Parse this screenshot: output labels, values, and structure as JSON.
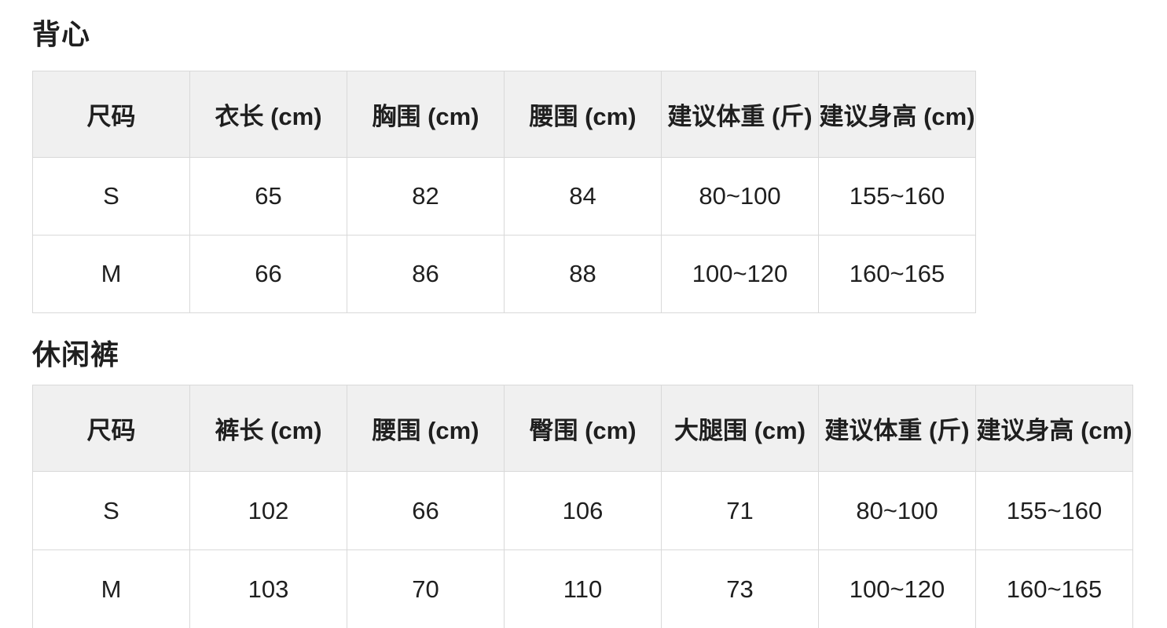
{
  "appearance": {
    "text_color": "#1f1f1f",
    "header_bg": "#f0f0f0",
    "border_color": "#d9d9d9",
    "page_bg": "#ffffff"
  },
  "tables": [
    {
      "title": "背心",
      "headers": [
        "尺码",
        "衣长 (cm)",
        "胸围 (cm)",
        "腰围 (cm)",
        "建议体重 (斤)",
        "建议身高 (cm)"
      ],
      "rows": [
        [
          "S",
          "65",
          "82",
          "84",
          "80~100",
          "155~160"
        ],
        [
          "M",
          "66",
          "86",
          "88",
          "100~120",
          "160~165"
        ]
      ]
    },
    {
      "title": "休闲裤",
      "headers": [
        "尺码",
        "裤长 (cm)",
        "腰围 (cm)",
        "臀围 (cm)",
        "大腿围 (cm)",
        "建议体重 (斤)",
        "建议身高 (cm)"
      ],
      "rows": [
        [
          "S",
          "102",
          "66",
          "106",
          "71",
          "80~100",
          "155~160"
        ],
        [
          "M",
          "103",
          "70",
          "110",
          "73",
          "100~120",
          "160~165"
        ]
      ]
    }
  ]
}
